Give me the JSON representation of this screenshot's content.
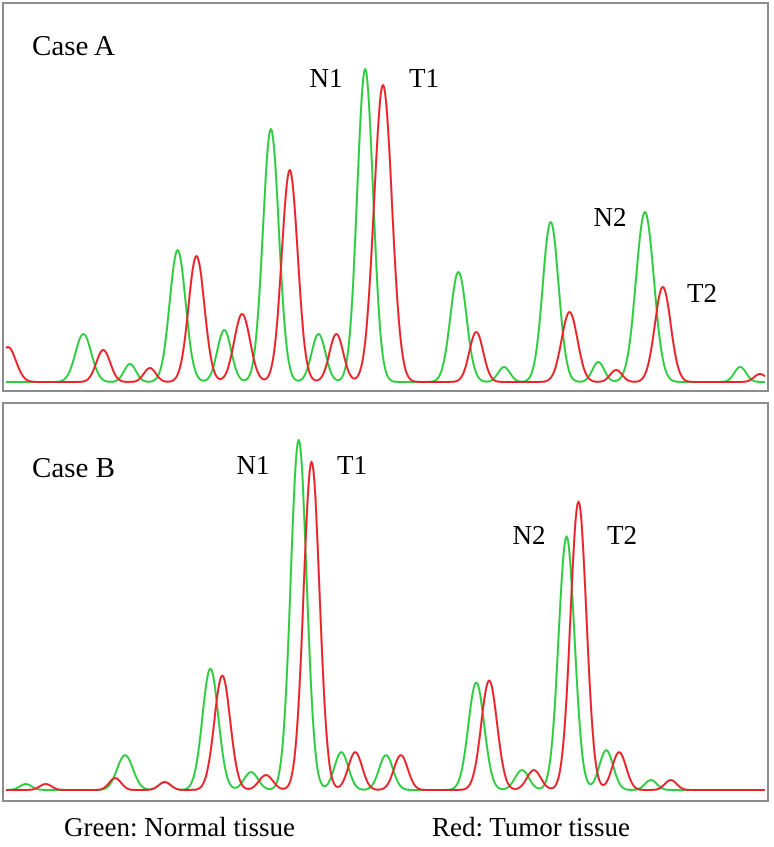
{
  "legend": {
    "green": "Green: Normal tissue",
    "red": "Red: Tumor tissue"
  },
  "colors": {
    "normal": "#2ecc40",
    "tumor": "#e8232a"
  },
  "chart_data": [
    {
      "type": "line",
      "title": "Case A",
      "grid": false,
      "ylim": [
        0,
        330
      ],
      "xlim": [
        0,
        765
      ],
      "series": [
        {
          "name": "Normal tissue",
          "color": "#2ecc40",
          "peaks": [
            {
              "x": 78,
              "h": 48,
              "w": 8
            },
            {
              "x": 125,
              "h": 18,
              "w": 6
            },
            {
              "x": 173,
              "h": 132,
              "w": 8
            },
            {
              "x": 220,
              "h": 52,
              "w": 7
            },
            {
              "x": 267,
              "h": 253,
              "w": 8
            },
            {
              "x": 315,
              "h": 48,
              "w": 7
            },
            {
              "x": 362,
              "h": 313,
              "w": 8
            },
            {
              "x": 456,
              "h": 110,
              "w": 8
            },
            {
              "x": 502,
              "h": 15,
              "w": 6
            },
            {
              "x": 549,
              "h": 160,
              "w": 8
            },
            {
              "x": 597,
              "h": 20,
              "w": 6
            },
            {
              "x": 644,
              "h": 170,
              "w": 9
            },
            {
              "x": 740,
              "h": 15,
              "w": 6
            }
          ]
        },
        {
          "name": "Tumor tissue",
          "color": "#e8232a",
          "peaks": [
            {
              "x": 2,
              "h": 35,
              "w": 8
            },
            {
              "x": 98,
              "h": 32,
              "w": 7
            },
            {
              "x": 145,
              "h": 14,
              "w": 6
            },
            {
              "x": 192,
              "h": 126,
              "w": 8
            },
            {
              "x": 238,
              "h": 68,
              "w": 8
            },
            {
              "x": 286,
              "h": 212,
              "w": 8
            },
            {
              "x": 333,
              "h": 48,
              "w": 7
            },
            {
              "x": 380,
              "h": 297,
              "w": 9
            },
            {
              "x": 474,
              "h": 50,
              "w": 7
            },
            {
              "x": 568,
              "h": 70,
              "w": 8
            },
            {
              "x": 615,
              "h": 12,
              "w": 6
            },
            {
              "x": 662,
              "h": 95,
              "w": 8
            },
            {
              "x": 760,
              "h": 8,
              "w": 6
            }
          ]
        }
      ],
      "annotations": [
        {
          "text": "N1",
          "x": 322,
          "y": 83
        },
        {
          "text": "T1",
          "x": 420,
          "y": 83
        },
        {
          "text": "N2",
          "x": 606,
          "y": 222
        },
        {
          "text": "T2",
          "x": 698,
          "y": 298
        }
      ]
    },
    {
      "type": "line",
      "title": "Case B",
      "grid": false,
      "ylim": [
        0,
        360
      ],
      "xlim": [
        0,
        765
      ],
      "series": [
        {
          "name": "Normal tissue",
          "color": "#2ecc40",
          "peaks": [
            {
              "x": 20,
              "h": 6,
              "w": 6
            },
            {
              "x": 120,
              "h": 35,
              "w": 8
            },
            {
              "x": 160,
              "h": 8,
              "w": 6
            },
            {
              "x": 206,
              "h": 122,
              "w": 8
            },
            {
              "x": 247,
              "h": 18,
              "w": 7
            },
            {
              "x": 295,
              "h": 352,
              "w": 8
            },
            {
              "x": 338,
              "h": 38,
              "w": 7
            },
            {
              "x": 383,
              "h": 35,
              "w": 7
            },
            {
              "x": 474,
              "h": 108,
              "w": 8
            },
            {
              "x": 520,
              "h": 20,
              "w": 7
            },
            {
              "x": 565,
              "h": 255,
              "w": 8
            },
            {
              "x": 605,
              "h": 40,
              "w": 7
            },
            {
              "x": 650,
              "h": 10,
              "w": 6
            }
          ]
        },
        {
          "name": "Tumor tissue",
          "color": "#e8232a",
          "peaks": [
            {
              "x": 40,
              "h": 6,
              "w": 6
            },
            {
              "x": 110,
              "h": 12,
              "w": 6
            },
            {
              "x": 160,
              "h": 8,
              "w": 6
            },
            {
              "x": 218,
              "h": 115,
              "w": 8
            },
            {
              "x": 262,
              "h": 15,
              "w": 7
            },
            {
              "x": 308,
              "h": 330,
              "w": 8
            },
            {
              "x": 352,
              "h": 38,
              "w": 7
            },
            {
              "x": 398,
              "h": 35,
              "w": 7
            },
            {
              "x": 487,
              "h": 110,
              "w": 8
            },
            {
              "x": 532,
              "h": 20,
              "w": 7
            },
            {
              "x": 577,
              "h": 290,
              "w": 8
            },
            {
              "x": 618,
              "h": 38,
              "w": 7
            },
            {
              "x": 670,
              "h": 10,
              "w": 6
            }
          ]
        }
      ],
      "annotations": [
        {
          "text": "N1",
          "x": 249,
          "y": 70
        },
        {
          "text": "T1",
          "x": 348,
          "y": 70
        },
        {
          "text": "N2",
          "x": 525,
          "y": 140
        },
        {
          "text": "T2",
          "x": 618,
          "y": 140
        }
      ]
    }
  ]
}
